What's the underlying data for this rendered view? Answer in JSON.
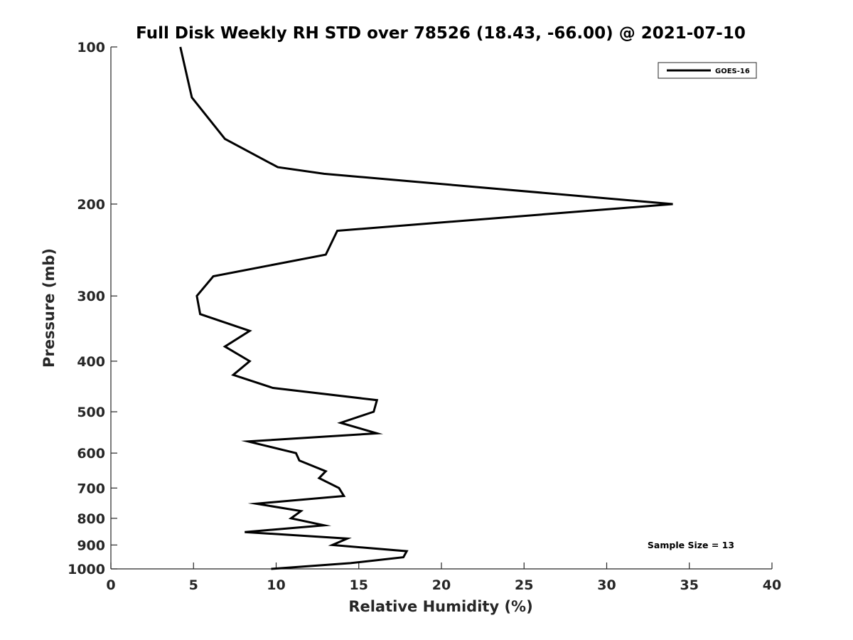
{
  "chart_data": {
    "type": "line",
    "title": "Full Disk Weekly RH STD over 78526 (18.43, -66.00) @ 2021-07-10",
    "xlabel": "Relative Humidity (%)",
    "ylabel": "Pressure (mb)",
    "xlim": [
      0,
      40
    ],
    "ylim": [
      100,
      1000
    ],
    "y_scale": "log",
    "y_reversed": true,
    "xticks": [
      0,
      5,
      10,
      15,
      20,
      25,
      30,
      35,
      40
    ],
    "yticks": [
      100,
      200,
      300,
      400,
      500,
      600,
      700,
      800,
      900,
      1000
    ],
    "grid": false,
    "legend_position": "top-right",
    "colors": {
      "series": "#000000",
      "axis": "#262626"
    },
    "series": [
      {
        "name": "GOES-16",
        "points": [
          {
            "x": 4.2,
            "y": 100
          },
          {
            "x": 4.9,
            "y": 125
          },
          {
            "x": 6.9,
            "y": 150
          },
          {
            "x": 10.1,
            "y": 170
          },
          {
            "x": 12.9,
            "y": 175
          },
          {
            "x": 34.0,
            "y": 200
          },
          {
            "x": 13.7,
            "y": 225
          },
          {
            "x": 13.0,
            "y": 250
          },
          {
            "x": 6.2,
            "y": 275
          },
          {
            "x": 5.2,
            "y": 300
          },
          {
            "x": 5.4,
            "y": 325
          },
          {
            "x": 8.4,
            "y": 350
          },
          {
            "x": 6.9,
            "y": 375
          },
          {
            "x": 8.4,
            "y": 400
          },
          {
            "x": 7.4,
            "y": 425
          },
          {
            "x": 9.8,
            "y": 450
          },
          {
            "x": 16.1,
            "y": 475
          },
          {
            "x": 15.9,
            "y": 500
          },
          {
            "x": 13.9,
            "y": 525
          },
          {
            "x": 16.1,
            "y": 550
          },
          {
            "x": 8.3,
            "y": 570
          },
          {
            "x": 11.2,
            "y": 600
          },
          {
            "x": 11.4,
            "y": 620
          },
          {
            "x": 13.0,
            "y": 650
          },
          {
            "x": 12.6,
            "y": 670
          },
          {
            "x": 13.8,
            "y": 700
          },
          {
            "x": 14.1,
            "y": 725
          },
          {
            "x": 8.8,
            "y": 750
          },
          {
            "x": 11.5,
            "y": 775
          },
          {
            "x": 10.9,
            "y": 800
          },
          {
            "x": 12.9,
            "y": 825
          },
          {
            "x": 8.1,
            "y": 850
          },
          {
            "x": 14.3,
            "y": 875
          },
          {
            "x": 13.4,
            "y": 900
          },
          {
            "x": 17.9,
            "y": 925
          },
          {
            "x": 17.7,
            "y": 950
          },
          {
            "x": 14.5,
            "y": 975
          },
          {
            "x": 9.7,
            "y": 1000
          }
        ]
      }
    ],
    "annotations": [
      {
        "text": "Sample Size = 13",
        "position": "bottom-right"
      }
    ]
  }
}
